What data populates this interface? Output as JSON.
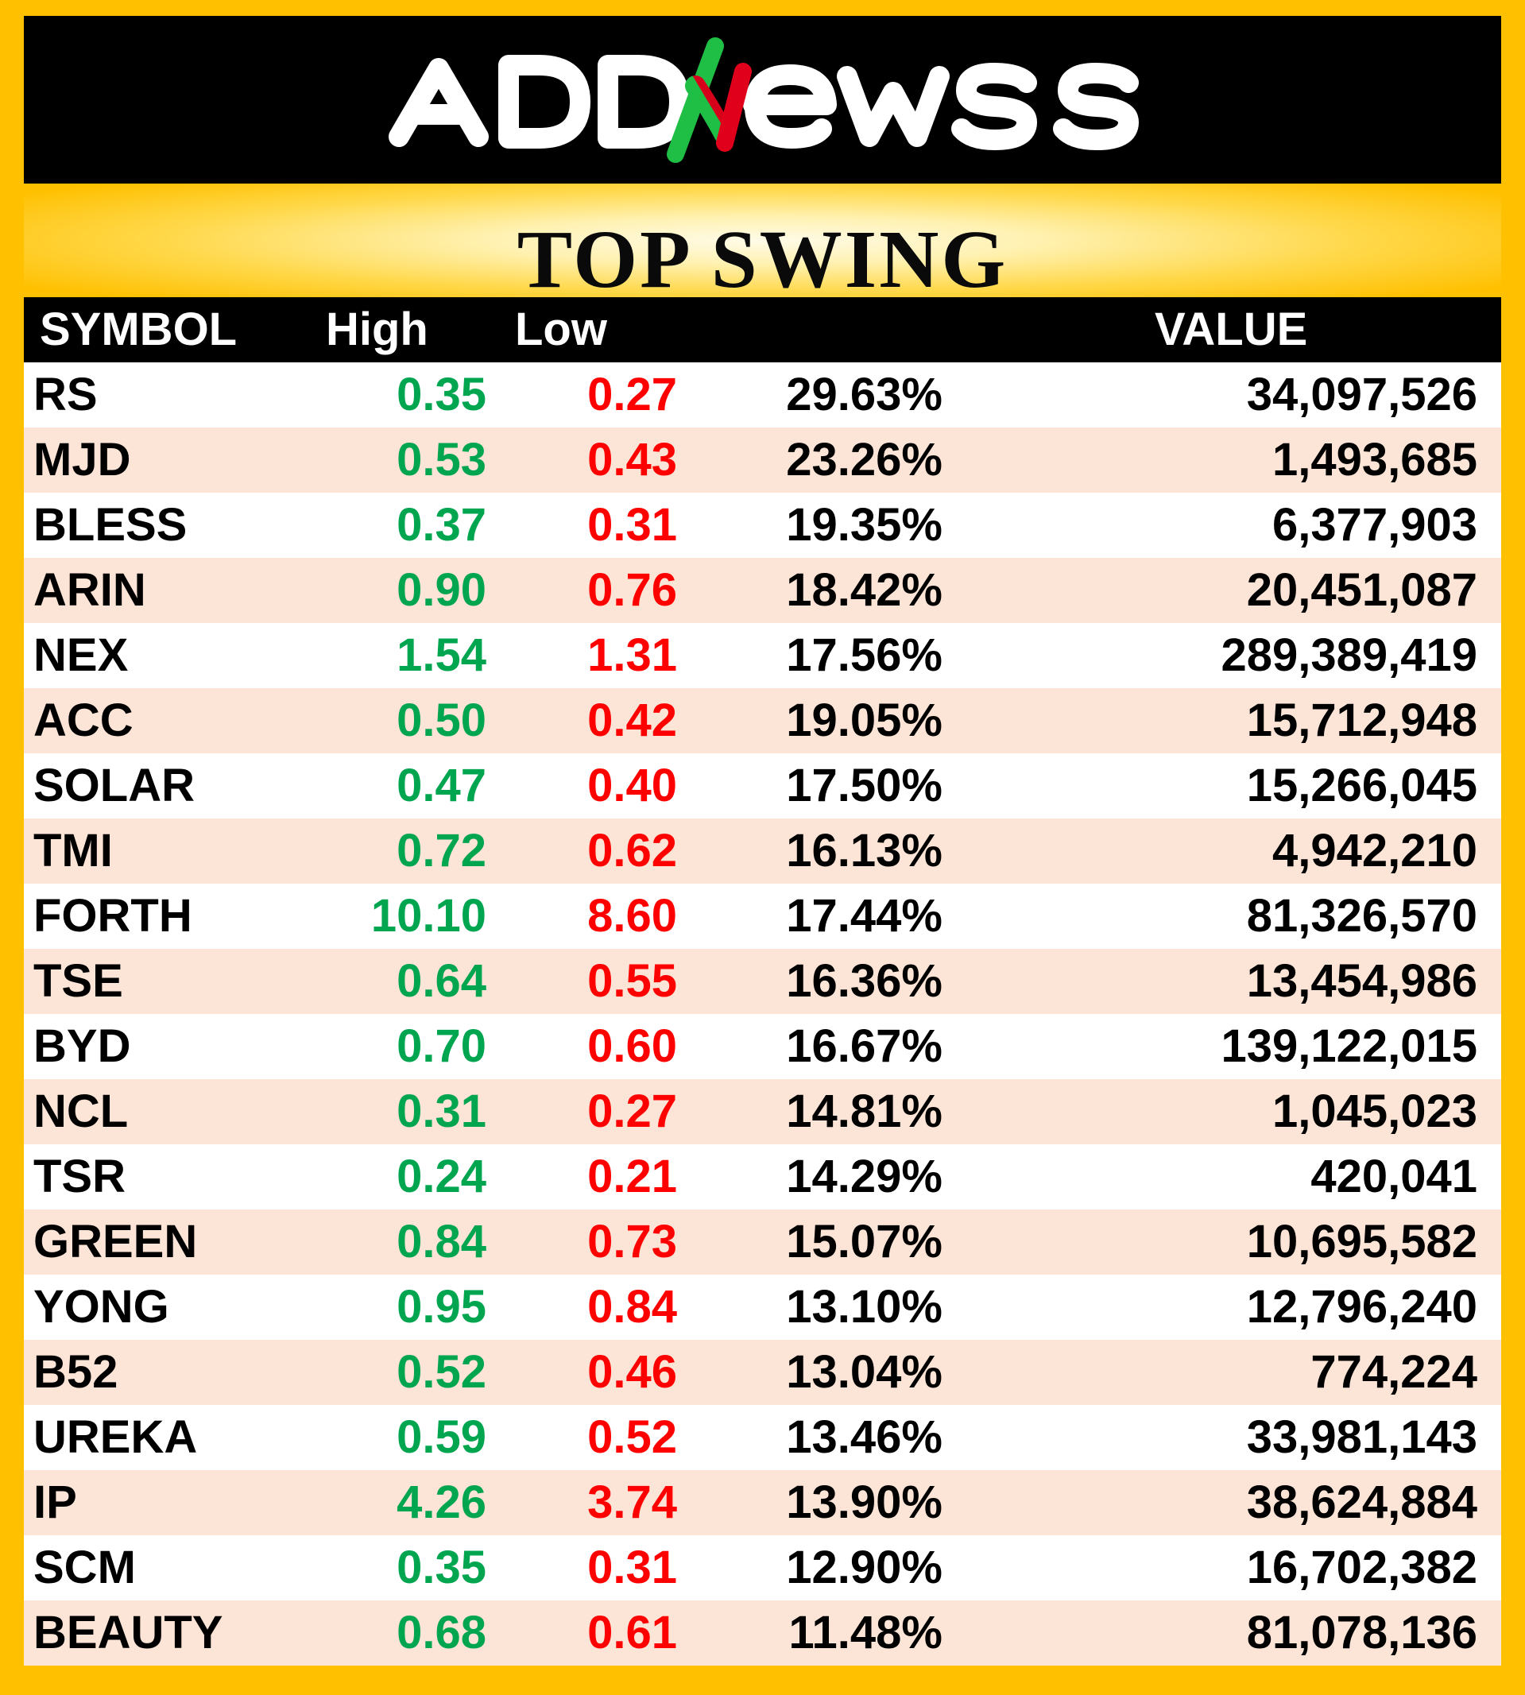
{
  "brand": {
    "logo_text": "ADDNEWSS",
    "colors": {
      "logo_text": "#FFFFFF",
      "logo_accent_green": "#21C04A",
      "logo_accent_red": "#E1001C",
      "frame": "#FFC000"
    }
  },
  "title": "TOP SWING",
  "columns": {
    "symbol": "SYMBOL",
    "high": "High",
    "low": "Low",
    "pct": "",
    "value": "VALUE"
  },
  "colors": {
    "header_bg": "#000000",
    "row_odd": "#FFFFFF",
    "row_even": "#FCE4D6",
    "high_text": "#00A550",
    "low_text": "#FF0000"
  },
  "rows": [
    {
      "symbol": "RS",
      "high": "0.35",
      "low": "0.27",
      "pct": "29.63%",
      "value": "34,097,526"
    },
    {
      "symbol": "MJD",
      "high": "0.53",
      "low": "0.43",
      "pct": "23.26%",
      "value": "1,493,685"
    },
    {
      "symbol": "BLESS",
      "high": "0.37",
      "low": "0.31",
      "pct": "19.35%",
      "value": "6,377,903"
    },
    {
      "symbol": "ARIN",
      "high": "0.90",
      "low": "0.76",
      "pct": "18.42%",
      "value": "20,451,087"
    },
    {
      "symbol": "NEX",
      "high": "1.54",
      "low": "1.31",
      "pct": "17.56%",
      "value": "289,389,419"
    },
    {
      "symbol": "ACC",
      "high": "0.50",
      "low": "0.42",
      "pct": "19.05%",
      "value": "15,712,948"
    },
    {
      "symbol": "SOLAR",
      "high": "0.47",
      "low": "0.40",
      "pct": "17.50%",
      "value": "15,266,045"
    },
    {
      "symbol": "TMI",
      "high": "0.72",
      "low": "0.62",
      "pct": "16.13%",
      "value": "4,942,210"
    },
    {
      "symbol": "FORTH",
      "high": "10.10",
      "low": "8.60",
      "pct": "17.44%",
      "value": "81,326,570"
    },
    {
      "symbol": "TSE",
      "high": "0.64",
      "low": "0.55",
      "pct": "16.36%",
      "value": "13,454,986"
    },
    {
      "symbol": "BYD",
      "high": "0.70",
      "low": "0.60",
      "pct": "16.67%",
      "value": "139,122,015"
    },
    {
      "symbol": "NCL",
      "high": "0.31",
      "low": "0.27",
      "pct": "14.81%",
      "value": "1,045,023"
    },
    {
      "symbol": "TSR",
      "high": "0.24",
      "low": "0.21",
      "pct": "14.29%",
      "value": "420,041"
    },
    {
      "symbol": "GREEN",
      "high": "0.84",
      "low": "0.73",
      "pct": "15.07%",
      "value": "10,695,582"
    },
    {
      "symbol": "YONG",
      "high": "0.95",
      "low": "0.84",
      "pct": "13.10%",
      "value": "12,796,240"
    },
    {
      "symbol": "B52",
      "high": "0.52",
      "low": "0.46",
      "pct": "13.04%",
      "value": "774,224"
    },
    {
      "symbol": "UREKA",
      "high": "0.59",
      "low": "0.52",
      "pct": "13.46%",
      "value": "33,981,143"
    },
    {
      "symbol": "IP",
      "high": "4.26",
      "low": "3.74",
      "pct": "13.90%",
      "value": "38,624,884"
    },
    {
      "symbol": "SCM",
      "high": "0.35",
      "low": "0.31",
      "pct": "12.90%",
      "value": "16,702,382"
    },
    {
      "symbol": "BEAUTY",
      "high": "0.68",
      "low": "0.61",
      "pct": "11.48%",
      "value": "81,078,136"
    }
  ]
}
